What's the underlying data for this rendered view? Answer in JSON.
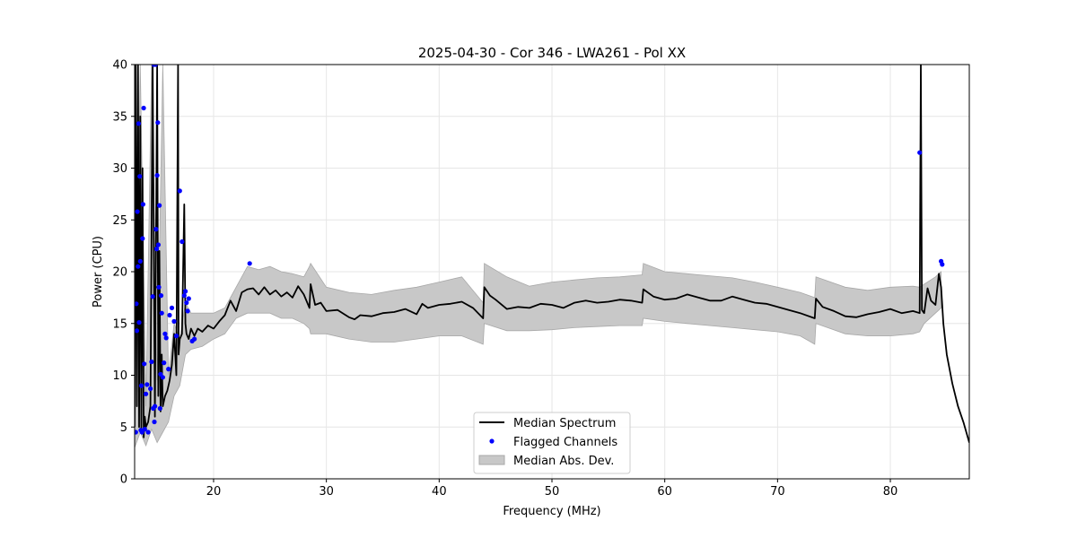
{
  "chart_data": {
    "type": "line",
    "title": "2025-04-30 - Cor 346 - LWA261 - Pol XX",
    "xlabel": "Frequency (MHz)",
    "ylabel": "Power (CPU)",
    "xlim": [
      13,
      87
    ],
    "ylim": [
      0,
      40
    ],
    "xticks": [
      20,
      30,
      40,
      50,
      60,
      70,
      80
    ],
    "yticks": [
      0,
      5,
      10,
      15,
      20,
      25,
      30,
      35,
      40
    ],
    "grid": true,
    "legend_position": "bottom-center",
    "legend": [
      {
        "label": "Median Spectrum",
        "kind": "line",
        "color": "#000000"
      },
      {
        "label": "Flagged Channels",
        "kind": "marker",
        "color": "#0000ff"
      },
      {
        "label": "Median Abs. Dev.",
        "kind": "band",
        "color": "#c8c8c8"
      }
    ],
    "series": [
      {
        "name": "Median Spectrum",
        "color": "#000000",
        "x": [
          13.0,
          13.1,
          13.2,
          13.3,
          13.4,
          13.5,
          13.6,
          13.7,
          13.8,
          13.9,
          14.0,
          14.2,
          14.4,
          14.6,
          14.8,
          15.0,
          15.1,
          15.2,
          15.3,
          15.4,
          15.5,
          15.7,
          15.9,
          16.1,
          16.3,
          16.5,
          16.7,
          16.85,
          16.9,
          17.0,
          17.2,
          17.4,
          17.5,
          17.6,
          17.8,
          18.0,
          18.3,
          18.6,
          19.0,
          19.5,
          20.0,
          20.5,
          21.0,
          21.5,
          22.0,
          22.5,
          23.0,
          23.5,
          24.0,
          24.5,
          25.0,
          25.5,
          26.0,
          26.5,
          27.0,
          27.5,
          28.0,
          28.5,
          28.6,
          29.0,
          29.5,
          30.0,
          31.0,
          32.0,
          32.5,
          33.0,
          34.0,
          35.0,
          36.0,
          37.0,
          38.0,
          38.5,
          39.0,
          40.0,
          41.0,
          42.0,
          43.0,
          43.9,
          44.0,
          44.5,
          45.0,
          46.0,
          47.0,
          48.0,
          49.0,
          50.0,
          51.0,
          52.0,
          53.0,
          54.0,
          55.0,
          56.0,
          57.0,
          58.0,
          58.1,
          59.0,
          60.0,
          61.0,
          62.0,
          63.0,
          64.0,
          65.0,
          66.0,
          67.0,
          68.0,
          69.0,
          70.0,
          71.0,
          72.0,
          73.3,
          73.4,
          74.0,
          75.0,
          76.0,
          77.0,
          78.0,
          79.0,
          80.0,
          81.0,
          82.0,
          82.6,
          82.7,
          82.8,
          83.0,
          83.3,
          83.6,
          84.0,
          84.3,
          84.5,
          84.7,
          85.0,
          85.5,
          86.0,
          86.5,
          87.0
        ],
        "y": [
          5.0,
          40.0,
          7.0,
          40.0,
          5.0,
          35.0,
          4.5,
          30.0,
          4.0,
          6.0,
          5.0,
          5.5,
          7.0,
          40.0,
          6.0,
          40.0,
          8.0,
          22.0,
          6.5,
          12.0,
          7.0,
          8.0,
          8.5,
          9.5,
          11.0,
          14.0,
          10.0,
          40.0,
          12.0,
          13.5,
          14.0,
          26.5,
          15.0,
          14.0,
          13.5,
          14.5,
          13.8,
          14.5,
          14.2,
          14.8,
          14.5,
          15.2,
          15.8,
          17.2,
          16.2,
          18.0,
          18.3,
          18.4,
          17.8,
          18.5,
          17.8,
          18.2,
          17.6,
          18.0,
          17.5,
          18.6,
          17.8,
          16.5,
          18.8,
          16.8,
          17.0,
          16.2,
          16.3,
          15.6,
          15.4,
          15.8,
          15.7,
          16.0,
          16.1,
          16.4,
          15.9,
          16.9,
          16.5,
          16.8,
          16.9,
          17.1,
          16.5,
          15.5,
          18.5,
          17.7,
          17.3,
          16.4,
          16.6,
          16.5,
          16.9,
          16.8,
          16.5,
          17.0,
          17.2,
          17.0,
          17.1,
          17.3,
          17.2,
          17.0,
          18.3,
          17.6,
          17.3,
          17.4,
          17.8,
          17.5,
          17.2,
          17.2,
          17.6,
          17.3,
          17.0,
          16.9,
          16.6,
          16.3,
          16.0,
          15.5,
          17.4,
          16.6,
          16.2,
          15.7,
          15.6,
          15.9,
          16.1,
          16.4,
          16.0,
          16.2,
          16.0,
          40.0,
          16.3,
          16.0,
          18.4,
          17.2,
          16.8,
          19.8,
          18.5,
          15.0,
          12.0,
          9.2,
          7.0,
          5.4,
          3.5
        ]
      }
    ],
    "mad_band": {
      "name": "Median Abs. Dev.",
      "color": "#c8c8c8",
      "x": [
        13.0,
        13.5,
        14.0,
        14.5,
        15.0,
        15.5,
        16.0,
        16.5,
        17.0,
        17.5,
        18.0,
        19.0,
        20.0,
        21.0,
        22.0,
        23.0,
        24.0,
        25.0,
        26.0,
        27.0,
        28.0,
        28.5,
        28.6,
        30.0,
        32.0,
        34.0,
        36.0,
        38.0,
        40.0,
        42.0,
        43.9,
        44.0,
        46.0,
        48.0,
        50.0,
        52.0,
        54.0,
        56.0,
        58.0,
        58.1,
        60.0,
        62.0,
        64.0,
        66.0,
        68.0,
        70.0,
        72.0,
        73.3,
        73.4,
        76.0,
        78.0,
        80.0,
        82.0,
        82.6,
        83.0,
        84.0,
        84.5
      ],
      "upper": [
        5.5,
        40.0,
        7.0,
        40.0,
        9.5,
        40.0,
        10.0,
        15.0,
        13.5,
        17.0,
        16.0,
        16.0,
        16.0,
        16.5,
        18.5,
        20.5,
        20.2,
        20.5,
        20.0,
        19.8,
        19.5,
        20.5,
        20.8,
        18.5,
        18.0,
        17.8,
        18.2,
        18.5,
        19.0,
        19.5,
        17.0,
        20.8,
        19.5,
        18.6,
        19.0,
        19.2,
        19.4,
        19.5,
        19.7,
        20.8,
        20.0,
        19.8,
        19.6,
        19.4,
        19.0,
        18.5,
        18.0,
        17.5,
        19.5,
        18.5,
        18.2,
        18.5,
        18.6,
        18.5,
        18.8,
        19.5,
        20.0
      ],
      "lower": [
        3.0,
        4.5,
        3.2,
        4.8,
        3.5,
        4.5,
        5.5,
        8.0,
        9.0,
        12.0,
        12.5,
        12.8,
        13.5,
        14.0,
        15.5,
        16.0,
        16.0,
        16.0,
        15.5,
        15.5,
        15.0,
        14.5,
        14.0,
        14.0,
        13.5,
        13.2,
        13.2,
        13.5,
        13.8,
        13.8,
        13.0,
        15.0,
        14.3,
        14.3,
        14.4,
        14.6,
        14.7,
        14.8,
        14.8,
        15.5,
        15.2,
        15.0,
        14.8,
        14.6,
        14.4,
        14.2,
        13.8,
        13.0,
        15.0,
        14.0,
        13.8,
        13.8,
        14.0,
        14.2,
        15.0,
        16.0,
        16.5
      ]
    },
    "flagged_channels": {
      "name": "Flagged Channels",
      "color": "#0000ff",
      "x": [
        13.1,
        13.15,
        13.2,
        13.25,
        13.3,
        13.35,
        13.4,
        13.45,
        13.5,
        13.55,
        13.6,
        13.65,
        13.7,
        13.75,
        13.8,
        13.85,
        13.9,
        14.0,
        14.1,
        14.2,
        14.4,
        14.5,
        14.6,
        14.65,
        14.7,
        14.75,
        14.8,
        14.85,
        14.9,
        14.95,
        15.0,
        15.05,
        15.1,
        15.15,
        15.2,
        15.25,
        15.3,
        15.35,
        15.4,
        15.5,
        15.6,
        15.7,
        15.8,
        16.0,
        16.1,
        16.3,
        16.5,
        16.7,
        17.0,
        17.2,
        17.4,
        17.5,
        17.6,
        17.7,
        17.8,
        18.1,
        18.3,
        23.2,
        82.6,
        84.5,
        84.6
      ],
      "y": [
        4.5,
        16.9,
        14.3,
        25.8,
        20.5,
        34.3,
        15.1,
        29.2,
        21.0,
        4.7,
        9.0,
        4.5,
        23.2,
        26.5,
        35.8,
        11.1,
        4.8,
        8.2,
        9.1,
        4.5,
        8.7,
        11.3,
        17.6,
        6.8,
        40.0,
        5.5,
        7.0,
        40.0,
        24.1,
        22.2,
        29.3,
        34.4,
        22.6,
        18.5,
        26.4,
        6.8,
        10.1,
        17.7,
        16.0,
        9.8,
        11.2,
        14.0,
        13.6,
        10.6,
        15.8,
        16.5,
        15.2,
        13.8,
        27.8,
        22.9,
        17.7,
        18.1,
        17.0,
        16.2,
        17.4,
        13.3,
        13.5,
        20.8,
        31.5,
        21.0,
        20.7
      ]
    }
  }
}
